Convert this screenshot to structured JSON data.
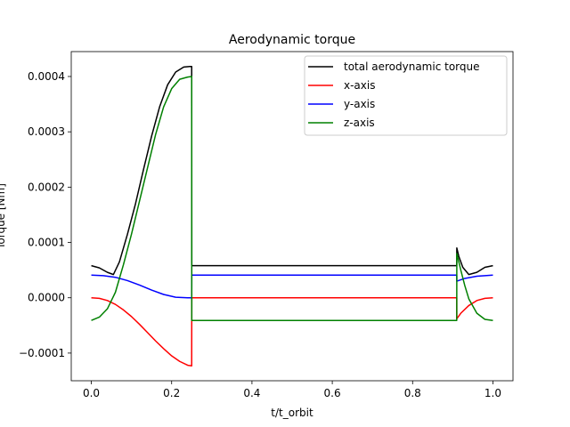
{
  "chart_data": {
    "type": "line",
    "title": "Aerodynamic torque",
    "xlabel": "t/t_orbit",
    "ylabel": "Torque [Nm]",
    "xlim": [
      -0.05,
      1.05
    ],
    "ylim": [
      -0.00015,
      0.000445
    ],
    "xticks": [
      0.0,
      0.2,
      0.4,
      0.6,
      0.8,
      1.0
    ],
    "xtick_labels": [
      "0.0",
      "0.2",
      "0.4",
      "0.6",
      "0.8",
      "1.0"
    ],
    "yticks": [
      -0.0001,
      0.0,
      0.0001,
      0.0002,
      0.0003,
      0.0004
    ],
    "ytick_labels": [
      "−0.0001",
      "0.0000",
      "0.0001",
      "0.0002",
      "0.0003",
      "0.0004"
    ],
    "grid": false,
    "legend_position": "top-right",
    "series": [
      {
        "name": "total aerodynamic torque",
        "color": "#000000",
        "x": [
          0.0,
          0.02,
          0.04,
          0.055,
          0.07,
          0.09,
          0.11,
          0.13,
          0.15,
          0.17,
          0.19,
          0.21,
          0.23,
          0.245,
          0.2499,
          0.2501,
          0.5,
          0.9099,
          0.9101,
          0.915,
          0.925,
          0.94,
          0.96,
          0.98,
          1.0
        ],
        "y": [
          5.8e-05,
          5.4e-05,
          4.6e-05,
          4.2e-05,
          6.5e-05,
          0.000115,
          0.00017,
          0.000232,
          0.000292,
          0.000345,
          0.000385,
          0.000408,
          0.000417,
          0.000418,
          0.000418,
          5.8e-05,
          5.8e-05,
          5.8e-05,
          9e-05,
          7.5e-05,
          5.5e-05,
          4.2e-05,
          4.6e-05,
          5.5e-05,
          5.8e-05
        ]
      },
      {
        "name": "x-axis",
        "color": "#ff0000",
        "x": [
          0.0,
          0.02,
          0.04,
          0.06,
          0.08,
          0.1,
          0.12,
          0.14,
          0.16,
          0.18,
          0.2,
          0.22,
          0.24,
          0.2499,
          0.2501,
          0.5,
          0.9099,
          0.9101,
          0.92,
          0.94,
          0.96,
          0.98,
          1.0
        ],
        "y": [
          0.0,
          -1e-06,
          -5e-06,
          -1.2e-05,
          -2.2e-05,
          -3.4e-05,
          -4.8e-05,
          -6.3e-05,
          -7.8e-05,
          -9.2e-05,
          -0.000105,
          -0.000115,
          -0.000122,
          -0.000123,
          0.0,
          0.0,
          0.0,
          -3.8e-05,
          -2.8e-05,
          -1.4e-05,
          -5e-06,
          -1e-06,
          0.0
        ]
      },
      {
        "name": "y-axis",
        "color": "#0000ff",
        "x": [
          0.0,
          0.03,
          0.06,
          0.09,
          0.12,
          0.15,
          0.18,
          0.21,
          0.24,
          0.2499,
          0.2501,
          0.5,
          0.9099,
          0.9101,
          0.93,
          0.96,
          1.0
        ],
        "y": [
          4.1e-05,
          4e-05,
          3.7e-05,
          3.1e-05,
          2.3e-05,
          1.4e-05,
          6e-06,
          1e-06,
          0.0,
          0.0,
          4.1e-05,
          4.1e-05,
          4.1e-05,
          3e-05,
          3.5e-05,
          3.9e-05,
          4.1e-05
        ]
      },
      {
        "name": "z-axis",
        "color": "#008000",
        "x": [
          0.0,
          0.02,
          0.04,
          0.06,
          0.08,
          0.1,
          0.12,
          0.14,
          0.16,
          0.18,
          0.2,
          0.22,
          0.24,
          0.2499,
          0.2501,
          0.5,
          0.9099,
          0.9101,
          0.92,
          0.93,
          0.94,
          0.96,
          0.98,
          1.0
        ],
        "y": [
          -4.1e-05,
          -3.5e-05,
          -2e-05,
          1e-05,
          6e-05,
          0.000115,
          0.000175,
          0.000235,
          0.000295,
          0.000345,
          0.000378,
          0.000395,
          0.000399,
          0.0004,
          -4.1e-05,
          -4.1e-05,
          -4.1e-05,
          8e-05,
          5e-05,
          2.2e-05,
          -2e-06,
          -2.8e-05,
          -3.9e-05,
          -4.1e-05
        ]
      }
    ]
  }
}
